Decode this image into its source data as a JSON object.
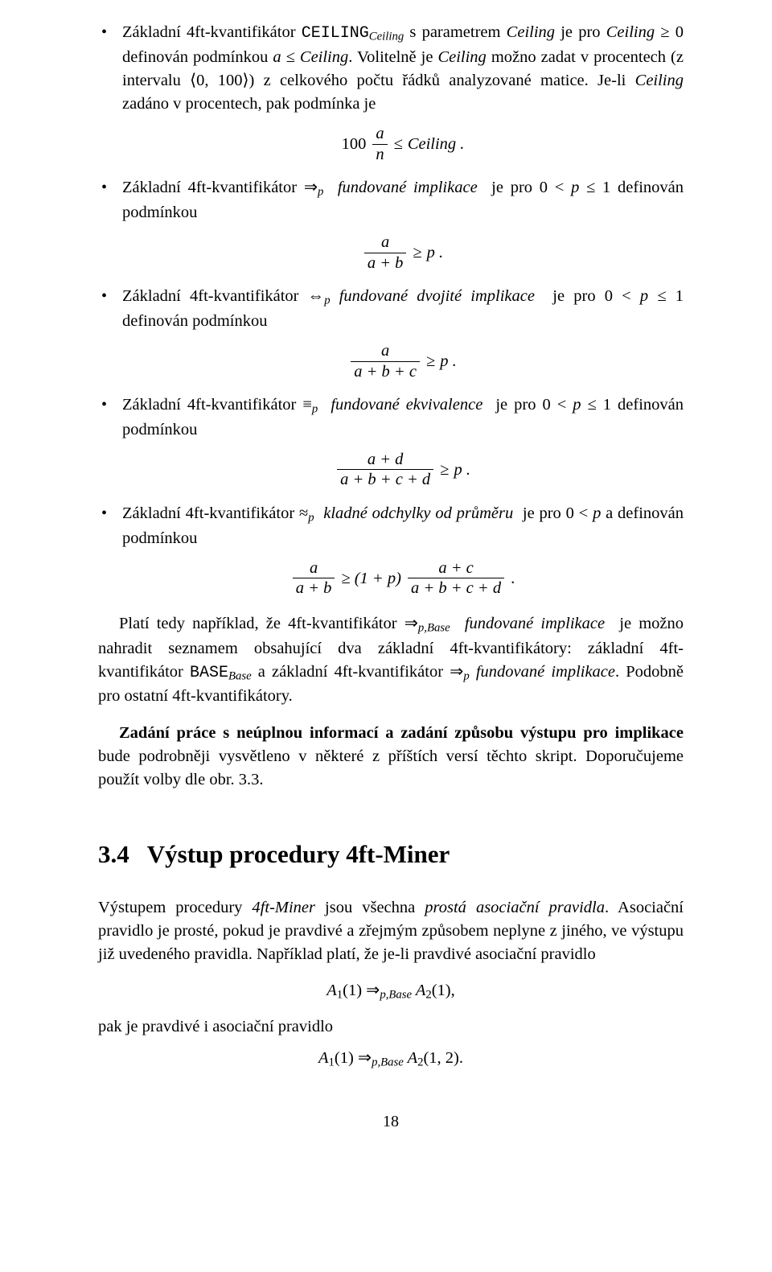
{
  "b1": {
    "l1a": "Základní 4ft-kvantifikátor ",
    "tt": "CEILING",
    "sub1": "Ceiling",
    "l1b": " s parametrem ",
    "it_ceil": "Ceiling",
    "l1c": " je pro ",
    "ge0": " ≥ 0 definován podmínkou ",
    "it_a": "a",
    "le": " ≤ ",
    "period": ". Volitelně je ",
    "l2": " možno zadat v procentech (z intervalu ⟨0, 100⟩) z celkového počtu řádků analyzované matice. Je-li ",
    "l3": " zadáno v procentech, pak podmínka je",
    "f_left": "100",
    "f_num": "a",
    "f_den": "n",
    "f_op": " ≤ ",
    "f_right": "Ceiling ."
  },
  "b2": {
    "l1": "Základní 4ft-kvantifikátor ⇒",
    "sub": "p",
    "l2": "fundované implikace",
    "l3": " je pro 0 < ",
    "it_p": "p",
    "l4": " ≤ 1 definován podmínkou",
    "f_num": "a",
    "f_den": "a + b",
    "f_op": " ≥ ",
    "f_right": "p ."
  },
  "b3": {
    "l1": "Základní 4ft-kvantifikátor ⇔",
    "sub": "p",
    "l2": "fundované dvojité implikace",
    "l3": " je pro 0 < ",
    "it_p": "p",
    "l4": " ≤ 1 definován podmínkou",
    "f_num": "a",
    "f_den": "a + b + c",
    "f_op": " ≥ ",
    "f_right": "p ."
  },
  "b4": {
    "l1": "Základní 4ft-kvantifikátor ≡",
    "sub": "p",
    "l2": "fundované ekvivalence",
    "l3": " je pro 0 < ",
    "it_p": "p",
    "l4": " ≤ 1 definován podmínkou",
    "f_num": "a + d",
    "f_den": "a + b + c + d",
    "f_op": " ≥ ",
    "f_right": "p ."
  },
  "b5": {
    "l1": "Základní 4ft-kvantifikátor ≈",
    "sub": "p",
    "l2": "kladné odchylky od průměru",
    "l3": " je pro 0 < ",
    "it_p": "p",
    "l4": " a definován podmínkou",
    "fL_num": "a",
    "fL_den": "a + b",
    "mid": " ≥ (1 + p)",
    "fR_num": "a + c",
    "fR_den": "a + b + c + d",
    "tail": " ."
  },
  "p1": {
    "a": "Platí tedy například, že 4ft-kvantifikátor ⇒",
    "sub": "p,Base",
    "b": "fundované implikace",
    "c": " je možno nahradit seznamem obsahující dva základní 4ft-kvantifikátory: základní 4ft-kvantifikátor ",
    "tt": "BASE",
    "sub2": "Base",
    "d": " a základní 4ft-kvantifikátor ⇒",
    "sub3": "p",
    "e": "fundované implikace",
    "f": ". Podobně pro ostatní 4ft-kvantifikátory."
  },
  "p2": {
    "bold": "Zadání práce s neúplnou informací a zadání způsobu výstupu pro implikace",
    "rest": " bude podrobněji vysvětleno v některé z příštích versí těchto skript. Doporučujeme použít volby dle obr. 3.3."
  },
  "sec": {
    "num": "3.4",
    "title": "Výstup procedury 4ft-Miner"
  },
  "p3": {
    "a": "Výstupem procedury ",
    "it1": "4ft-Miner",
    "b": " jsou všechna ",
    "it2": "prostá asociační pravidla",
    "c": ". Asociační pravidlo je prosté, pokud je pravdivé a zřejmým způsobem neplyne z jiného, ve výstupu již uvedeného pravidla. Například platí, že je-li pravdivé asociační pravidlo"
  },
  "eq1": "A",
  "eq1a": "1",
  "eq1b": "(1) ⇒",
  "eq1sub": "p,Base",
  "eq1c": " A",
  "eq1d": "2",
  "eq1e": "(1),",
  "p4": "pak je pravdivé i asociační pravidlo",
  "eq2": "A",
  "eq2a": "1",
  "eq2b": "(1) ⇒",
  "eq2sub": "p,Base",
  "eq2c": " A",
  "eq2d": "2",
  "eq2e": "(1, 2).",
  "pagenum": "18"
}
